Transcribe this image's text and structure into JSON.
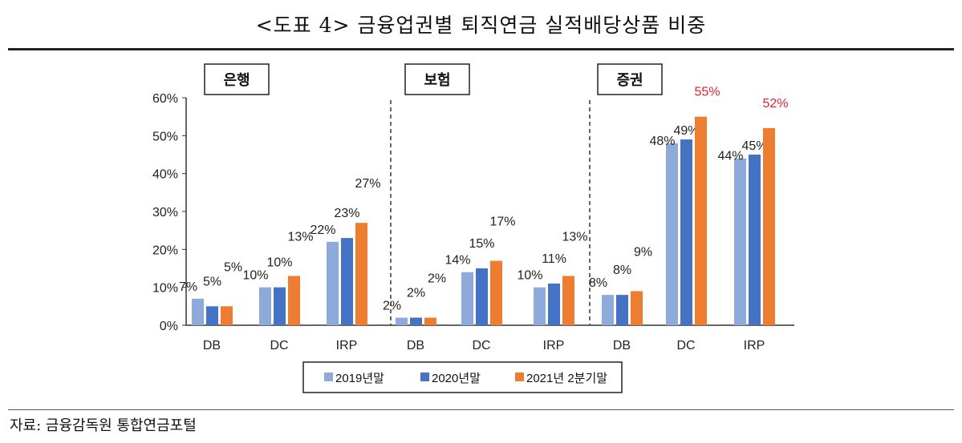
{
  "title": "<도표 4> 금융업권별 퇴직연금 실적배당상품 비중",
  "source": "자료: 금융감독원 통합연금포털",
  "chart_data": {
    "type": "bar",
    "groups": [
      "은행",
      "보험",
      "증권"
    ],
    "categories": [
      "DB",
      "DC",
      "IRP"
    ],
    "yticks": [
      "0%",
      "10%",
      "20%",
      "30%",
      "40%",
      "50%",
      "60%"
    ],
    "ylim": [
      0,
      60
    ],
    "grid": false,
    "legend_position": "bottom",
    "series": [
      {
        "name": "2019년말",
        "color": "#8eaadb",
        "values": [
          [
            7,
            10,
            22
          ],
          [
            2,
            14,
            10
          ],
          [
            8,
            48,
            44
          ]
        ]
      },
      {
        "name": "2020년말",
        "color": "#4472c4",
        "values": [
          [
            5,
            10,
            23
          ],
          [
            2,
            15,
            11
          ],
          [
            8,
            49,
            45
          ]
        ]
      },
      {
        "name": "2021년 2분기말",
        "color": "#ed7d31",
        "values": [
          [
            5,
            13,
            27
          ],
          [
            2,
            17,
            13
          ],
          [
            9,
            55,
            52
          ]
        ]
      }
    ],
    "data_labels": [
      [
        [
          "7%",
          "5%",
          "5%"
        ],
        [
          "10%",
          "10%",
          "13%"
        ],
        [
          "22%",
          "23%",
          "27%"
        ]
      ],
      [
        [
          "2%",
          "2%",
          "2%"
        ],
        [
          "14%",
          "15%",
          "17%"
        ],
        [
          "10%",
          "11%",
          "13%"
        ]
      ],
      [
        [
          "8%",
          "8%",
          "9%"
        ],
        [
          "48%",
          "49%",
          "55%"
        ],
        [
          "44%",
          "45%",
          "52%"
        ]
      ]
    ],
    "highlight_color": "#e0242b"
  }
}
